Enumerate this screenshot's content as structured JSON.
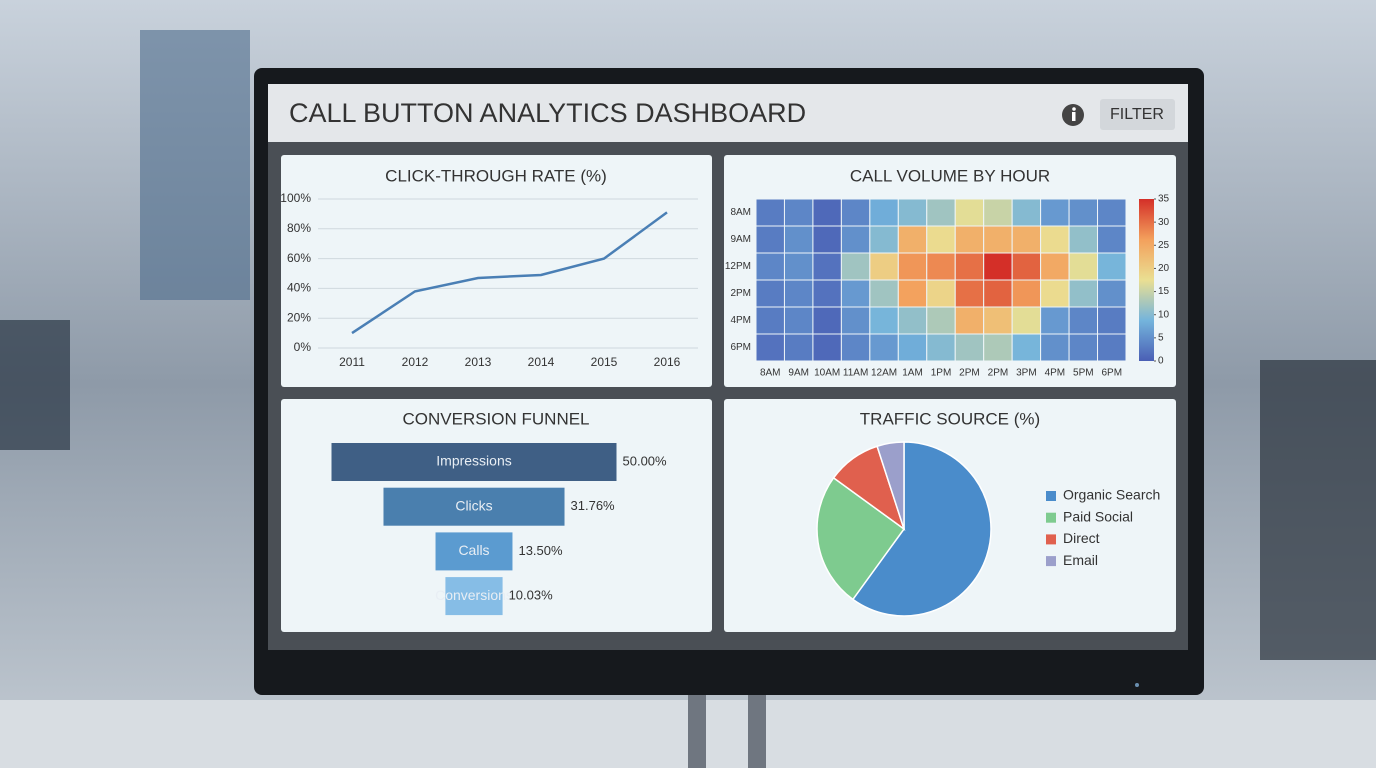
{
  "header": {
    "title": "CALL BUTTON ANALYTICS DASHBOARD",
    "filter": "FILTER"
  },
  "chart_data": [
    {
      "type": "line",
      "title": "CLICK-THROUGH RATE (%)",
      "categories": [
        "2011",
        "2012",
        "2013",
        "2014",
        "2015",
        "2016"
      ],
      "values": [
        10,
        38,
        47,
        49,
        60,
        91
      ],
      "color": "#4a7fb5",
      "ylim": [
        0,
        100
      ],
      "yticks": [
        {
          "value": 0,
          "label": "0%"
        },
        {
          "value": 20,
          "label": "20%"
        },
        {
          "value": 40,
          "label": "40%"
        },
        {
          "value": 60,
          "label": "60%"
        },
        {
          "value": 80,
          "label": "80%"
        },
        {
          "value": 100,
          "label": "100%"
        }
      ],
      "grid": true
    },
    {
      "type": "heatmap",
      "title": "CALL VOLUME BY HOUR",
      "x": [
        "8AM",
        "9AM",
        "10AM",
        "11AM",
        "12AM",
        "1AM",
        "1PM",
        "2PM",
        "2PM",
        "3PM",
        "4PM",
        "5PM",
        "6PM"
      ],
      "y": [
        "8AM",
        "9AM",
        "12PM",
        "2PM",
        "4PM",
        "6PM"
      ],
      "values": [
        [
          3,
          4,
          1,
          4,
          8,
          10,
          12,
          17,
          15,
          10,
          6,
          5,
          4
        ],
        [
          3,
          5,
          1,
          5,
          10,
          24,
          18,
          24,
          24,
          24,
          18,
          11,
          4
        ],
        [
          4,
          5,
          2,
          12,
          20,
          27,
          28,
          30,
          35,
          31,
          25,
          17,
          9
        ],
        [
          3,
          4,
          2,
          6,
          12,
          26,
          19,
          30,
          31,
          27,
          18,
          11,
          5
        ],
        [
          3,
          4,
          1,
          5,
          9,
          11,
          13,
          24,
          22,
          17,
          6,
          4,
          3
        ],
        [
          2,
          3,
          1,
          4,
          6,
          8,
          10,
          12,
          13,
          9,
          5,
          4,
          3
        ]
      ],
      "zlim": [
        0,
        35
      ],
      "zticks": [
        0,
        5,
        10,
        15,
        20,
        25,
        30,
        35
      ],
      "colorscale": [
        "#4a5fb5",
        "#74b4dc",
        "#eadf92",
        "#f3a05c",
        "#d42f28"
      ]
    },
    {
      "type": "funnel",
      "title": "CONVERSION FUNNEL",
      "categories": [
        "Impressions",
        "Clicks",
        "Calls",
        "Conversions"
      ],
      "values": [
        50,
        31.76,
        13.5,
        10.03
      ],
      "value_labels": [
        "50.00%",
        "31.76%",
        "13.50%",
        "10.03%"
      ],
      "colors": [
        "#3f5f85",
        "#4a7fae",
        "#5b9bd0",
        "#86bde6"
      ]
    },
    {
      "type": "pie",
      "title": "TRAFFIC SOURCE (%)",
      "categories": [
        "Organic Search",
        "Paid Social",
        "Direct",
        "Email"
      ],
      "values": [
        60,
        25,
        10,
        5
      ],
      "colors": [
        "#4a8ccb",
        "#7ecb8f",
        "#e0604e",
        "#9b9fcb"
      ],
      "legend": "right"
    }
  ]
}
